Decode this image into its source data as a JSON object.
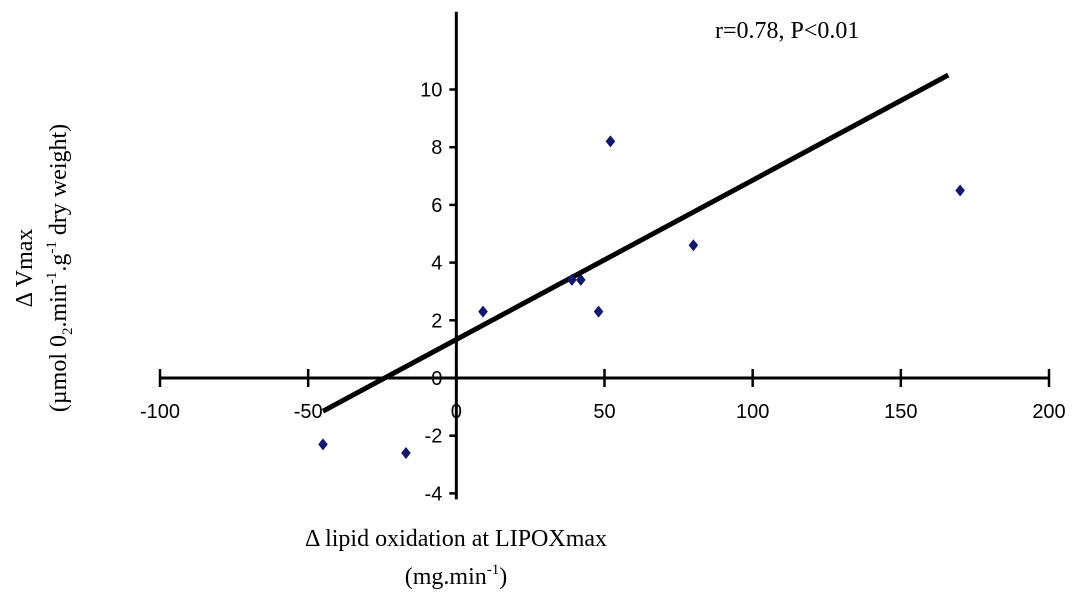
{
  "chart_data": {
    "type": "scatter",
    "title": "",
    "annotation": "r=0.78, P<0.01",
    "xlabel_line1": "Δ lipid oxidation at LIPOXmax",
    "xlabel_line2_main": "(mg.min",
    "xlabel_line2_sup": "-1",
    "xlabel_line2_end": ")",
    "ylabel_line1": "Δ Vmax",
    "ylabel_line2_a": "(µmol 0",
    "ylabel_line2_sub": "2",
    "ylabel_line2_b": ".min",
    "ylabel_line2_sup1": "-1",
    "ylabel_line2_c": ".g",
    "ylabel_line2_sup2": "-1",
    "ylabel_line2_d": " dry weight)",
    "xlim": [
      -100,
      200
    ],
    "ylim": [
      -4,
      12
    ],
    "x_ticks": [
      -100,
      -50,
      0,
      50,
      100,
      150,
      200
    ],
    "x_tick_labels": [
      "-100",
      "-50",
      "0",
      "50",
      "100",
      "150",
      "200"
    ],
    "y_ticks": [
      -4,
      -2,
      0,
      2,
      4,
      6,
      8,
      10
    ],
    "y_tick_labels": [
      "-4",
      "-2",
      "0",
      "2",
      "4",
      "6",
      "8",
      "10"
    ],
    "grid": false,
    "points": [
      {
        "x": -45,
        "y": -2.3
      },
      {
        "x": -17,
        "y": -2.6
      },
      {
        "x": 9,
        "y": 2.3
      },
      {
        "x": 39,
        "y": 3.4
      },
      {
        "x": 42,
        "y": 3.4
      },
      {
        "x": 48,
        "y": 2.3
      },
      {
        "x": 52,
        "y": 8.2
      },
      {
        "x": 80,
        "y": 4.6
      },
      {
        "x": 170,
        "y": 6.5
      }
    ],
    "fit_line": {
      "x": [
        -45,
        166
      ],
      "y": [
        -1.15,
        10.5
      ]
    },
    "colors": {
      "points": "#0f1773",
      "line": "#000000",
      "axes": "#000000"
    }
  }
}
